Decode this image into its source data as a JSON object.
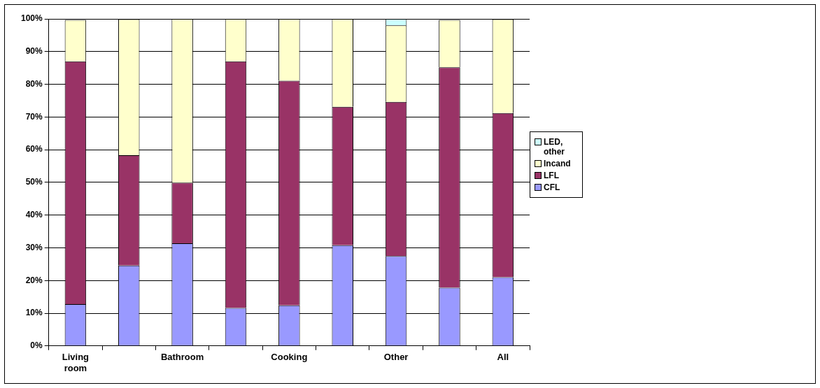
{
  "chart_data": {
    "type": "bar",
    "stacked": true,
    "categories": [
      "Living room",
      null,
      "Bathroom",
      null,
      "Cooking",
      null,
      "Other",
      null,
      "All"
    ],
    "series": [
      {
        "name": "CFL",
        "color": "#9999ff",
        "values": [
          12.8,
          24.6,
          31.4,
          11.6,
          12.4,
          30.8,
          27.5,
          17.8,
          21.0
        ]
      },
      {
        "name": "LFL",
        "color": "#993366",
        "values": [
          74.2,
          33.7,
          18.5,
          75.4,
          68.7,
          42.3,
          47.1,
          67.4,
          50.2
        ]
      },
      {
        "name": "Incand",
        "color": "#ffffcc",
        "values": [
          12.7,
          41.6,
          50.1,
          13.0,
          18.9,
          26.9,
          23.4,
          14.5,
          28.7
        ]
      },
      {
        "name": "LED, other",
        "color": "#ccffff",
        "values": [
          null,
          null,
          0,
          0,
          0,
          0,
          2.0,
          null,
          null
        ]
      }
    ],
    "ylim": [
      0,
      100
    ],
    "yticks": [
      {
        "value": 0,
        "label": "0%"
      },
      {
        "value": 10,
        "label": "10%"
      },
      {
        "value": 20,
        "label": "20%"
      },
      {
        "value": 30,
        "label": "30%"
      },
      {
        "value": 40,
        "label": "40%"
      },
      {
        "value": 50,
        "label": "50%"
      },
      {
        "value": 60,
        "label": "60%"
      },
      {
        "value": 70,
        "label": "70%"
      },
      {
        "value": 80,
        "label": "80%"
      },
      {
        "value": 90,
        "label": "90%"
      },
      {
        "value": 100,
        "label": "100%"
      }
    ],
    "grid": "y",
    "legend": "right"
  }
}
